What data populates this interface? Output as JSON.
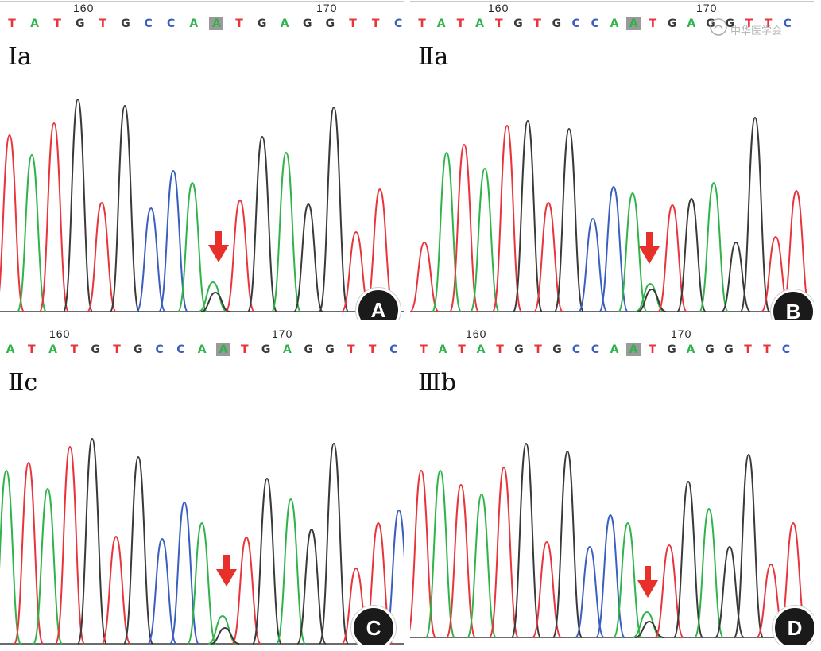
{
  "panels": [
    {
      "id": "a",
      "badge": "A",
      "group_label": "Ⅰa",
      "pos_start": "160",
      "pos_end": "170",
      "seq": [
        "T",
        "A",
        "T",
        "G",
        "T",
        "G",
        "C",
        "C",
        "A",
        "A",
        "T",
        "G",
        "A",
        "G",
        "G",
        "T",
        "T",
        "C"
      ],
      "hl_index": 9
    },
    {
      "id": "b",
      "badge": "B",
      "group_label": "Ⅱa",
      "pos_start": "160",
      "pos_end": "170",
      "seq": [
        "T",
        "A",
        "T",
        "A",
        "T",
        "G",
        "T",
        "G",
        "C",
        "C",
        "A",
        "A",
        "T",
        "G",
        "A",
        "G",
        "G",
        "T",
        "T",
        "C"
      ],
      "hl_index": 11
    },
    {
      "id": "c",
      "badge": "C",
      "group_label": "Ⅱc",
      "pos_start": "160",
      "pos_end": "170",
      "seq": [
        "A",
        "T",
        "A",
        "T",
        "G",
        "T",
        "G",
        "C",
        "C",
        "A",
        "A",
        "T",
        "G",
        "A",
        "G",
        "G",
        "T",
        "T",
        "C"
      ],
      "hl_index": 10
    },
    {
      "id": "d",
      "badge": "D",
      "group_label": "Ⅲb",
      "pos_start": "160",
      "pos_end": "170",
      "seq": [
        "T",
        "A",
        "T",
        "A",
        "T",
        "G",
        "T",
        "G",
        "C",
        "C",
        "A",
        "A",
        "T",
        "G",
        "A",
        "G",
        "G",
        "T",
        "T",
        "C"
      ],
      "hl_index": 11
    }
  ],
  "watermark": "中华医学会",
  "colors": {
    "A": "#2fb44a",
    "T": "#e8353c",
    "G": "#3a3a3a",
    "C": "#3b5fc0",
    "arrow": "#e8302a"
  },
  "icons": {
    "mutation_marker": "down-arrow-icon",
    "watermark_logo": "seal-logo-icon"
  }
}
